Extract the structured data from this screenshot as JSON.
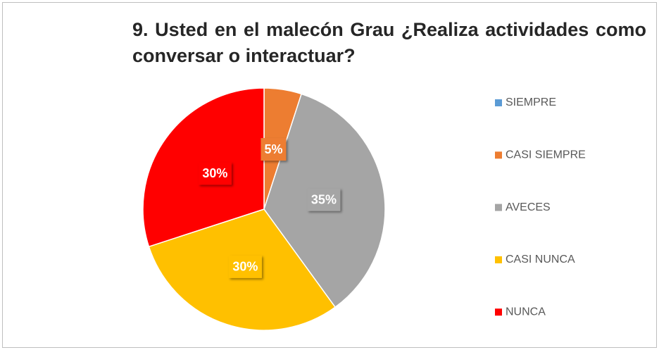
{
  "chart_data": {
    "type": "pie",
    "title": "9. Usted en el malecón Grau ¿Realiza actividades como conversar o interactuar?",
    "categories": [
      "SIEMPRE",
      "CASI SIEMPRE",
      "AVECES",
      "CASI NUNCA",
      "NUNCA"
    ],
    "values": [
      0,
      5,
      35,
      30,
      30
    ],
    "value_labels": [
      null,
      "5%",
      "35%",
      "30%",
      "30%"
    ],
    "colors": [
      "#5b9bd5",
      "#ed7d31",
      "#a5a5a5",
      "#ffc000",
      "#ff0000"
    ],
    "legend": "right"
  }
}
